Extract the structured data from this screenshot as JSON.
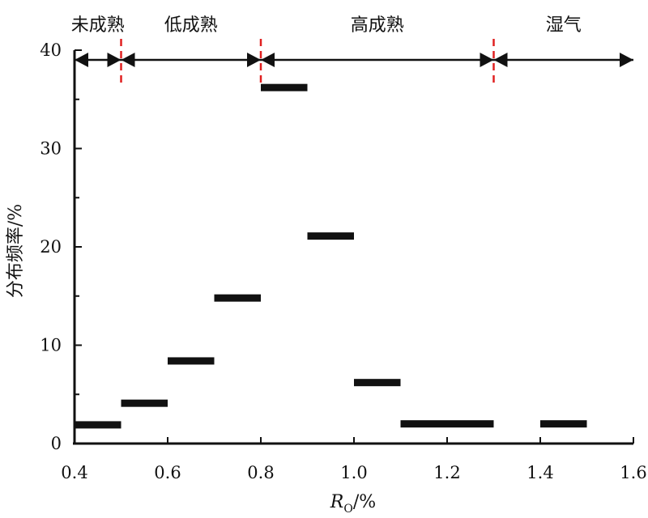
{
  "chart_data": {
    "type": "bar",
    "xlabel_main": "R",
    "xlabel_sub": "O",
    "xlabel_unit": "/%",
    "ylabel": "分布频率/%",
    "xlim": [
      0.4,
      1.6
    ],
    "ylim": [
      0,
      40
    ],
    "xticks": [
      0.4,
      0.6,
      0.8,
      1.0,
      1.2,
      1.4,
      1.6
    ],
    "xtick_labels": [
      "0.4",
      "0.6",
      "0.8",
      "1.0",
      "1.2",
      "1.4",
      "1.6"
    ],
    "yticks": [
      0,
      10,
      20,
      30,
      40
    ],
    "ytick_labels": [
      "0",
      "10",
      "20",
      "30",
      "40"
    ],
    "bins": [
      {
        "x0": 0.4,
        "x1": 0.5,
        "y": 1.9
      },
      {
        "x0": 0.5,
        "x1": 0.6,
        "y": 4.1
      },
      {
        "x0": 0.6,
        "x1": 0.7,
        "y": 8.4
      },
      {
        "x0": 0.7,
        "x1": 0.8,
        "y": 14.8
      },
      {
        "x0": 0.8,
        "x1": 0.9,
        "y": 36.2
      },
      {
        "x0": 0.9,
        "x1": 1.0,
        "y": 21.1
      },
      {
        "x0": 1.0,
        "x1": 1.1,
        "y": 6.2
      },
      {
        "x0": 1.1,
        "x1": 1.2,
        "y": 2.0
      },
      {
        "x0": 1.2,
        "x1": 1.3,
        "y": 2.0
      },
      {
        "x0": 1.4,
        "x1": 1.5,
        "y": 2.0
      }
    ],
    "maturity_zones": [
      {
        "label": "未成熟",
        "from": 0.4,
        "to": 0.5
      },
      {
        "label": "低成熟",
        "from": 0.5,
        "to": 0.8
      },
      {
        "label": "高成熟",
        "from": 0.8,
        "to": 1.3
      },
      {
        "label": "湿气",
        "from": 1.3,
        "to": 1.6
      }
    ],
    "boundaries": [
      0.5,
      0.8,
      1.3
    ],
    "boundary_color": "#e02020",
    "bar_color": "#111111"
  }
}
